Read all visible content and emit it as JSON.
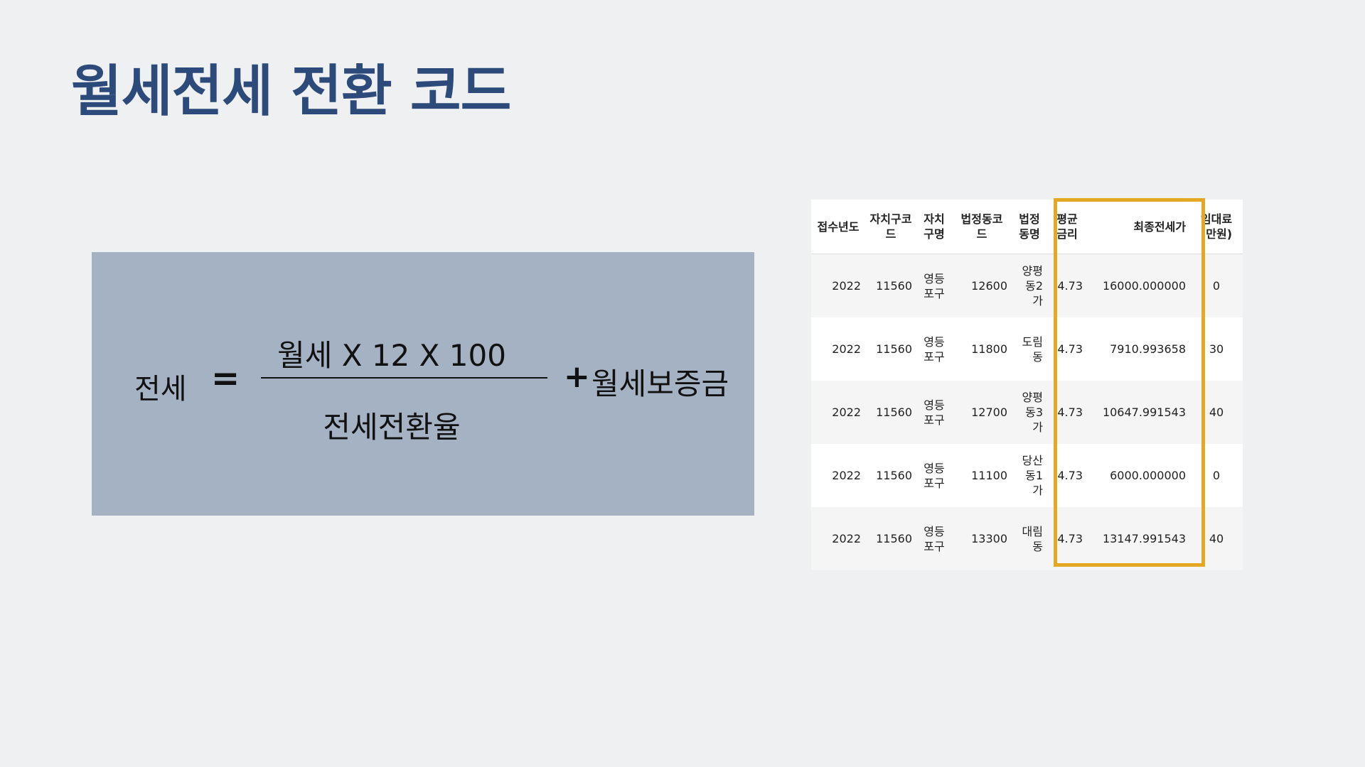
{
  "title": "월세전세 전환 코드",
  "formula": {
    "lhs": "전세",
    "equals": "=",
    "numerator": "월세 X 12 X 100",
    "denominator": "전세전환율",
    "plus": "+",
    "addend": "월세보증금"
  },
  "table": {
    "headers": [
      "접수년도",
      "자치구코드",
      "자치구명",
      "법정동코드",
      "법정동명",
      "평균금리",
      "최종전세가",
      "임대료(만원)"
    ],
    "rows": [
      [
        "2022",
        "11560",
        "영등포구",
        "12600",
        "양평동2가",
        "4.73",
        "16000.000000",
        "0"
      ],
      [
        "2022",
        "11560",
        "영등포구",
        "11800",
        "도림동",
        "4.73",
        "7910.993658",
        "30"
      ],
      [
        "2022",
        "11560",
        "영등포구",
        "12700",
        "양평동3가",
        "4.73",
        "10647.991543",
        "40"
      ],
      [
        "2022",
        "11560",
        "영등포구",
        "11100",
        "당산동1가",
        "4.73",
        "6000.000000",
        "0"
      ],
      [
        "2022",
        "11560",
        "영등포구",
        "13300",
        "대림동",
        "4.73",
        "13147.991543",
        "40"
      ]
    ]
  },
  "highlight_color": "#e5a823",
  "title_color": "#2c4a7a",
  "box_color": "#a4b2c4"
}
